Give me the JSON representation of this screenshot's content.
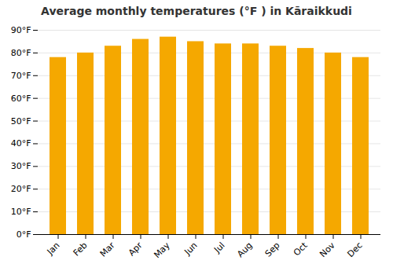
{
  "chart_data": {
    "type": "bar",
    "title": "Average monthly temperatures (°F ) in Kāraikkudi",
    "categories": [
      "Jan",
      "Feb",
      "Mar",
      "Apr",
      "May",
      "Jun",
      "Jul",
      "Aug",
      "Sep",
      "Oct",
      "Nov",
      "Dec"
    ],
    "values": [
      78,
      80,
      83,
      86,
      87,
      85,
      84,
      84,
      83,
      82,
      80,
      78
    ],
    "color": "#F5A800",
    "ylim": [
      0,
      90
    ],
    "yticks": [
      {
        "value": 0,
        "label": "0°F"
      },
      {
        "value": 10,
        "label": "10°F"
      },
      {
        "value": 20,
        "label": "20°F"
      },
      {
        "value": 30,
        "label": "30°F"
      },
      {
        "value": 40,
        "label": "40°F"
      },
      {
        "value": 50,
        "label": "50°F"
      },
      {
        "value": 60,
        "label": "60°F"
      },
      {
        "value": 70,
        "label": "70°F"
      },
      {
        "value": 80,
        "label": "80°F"
      },
      {
        "value": 90,
        "label": "90°F"
      }
    ],
    "grid": true
  }
}
